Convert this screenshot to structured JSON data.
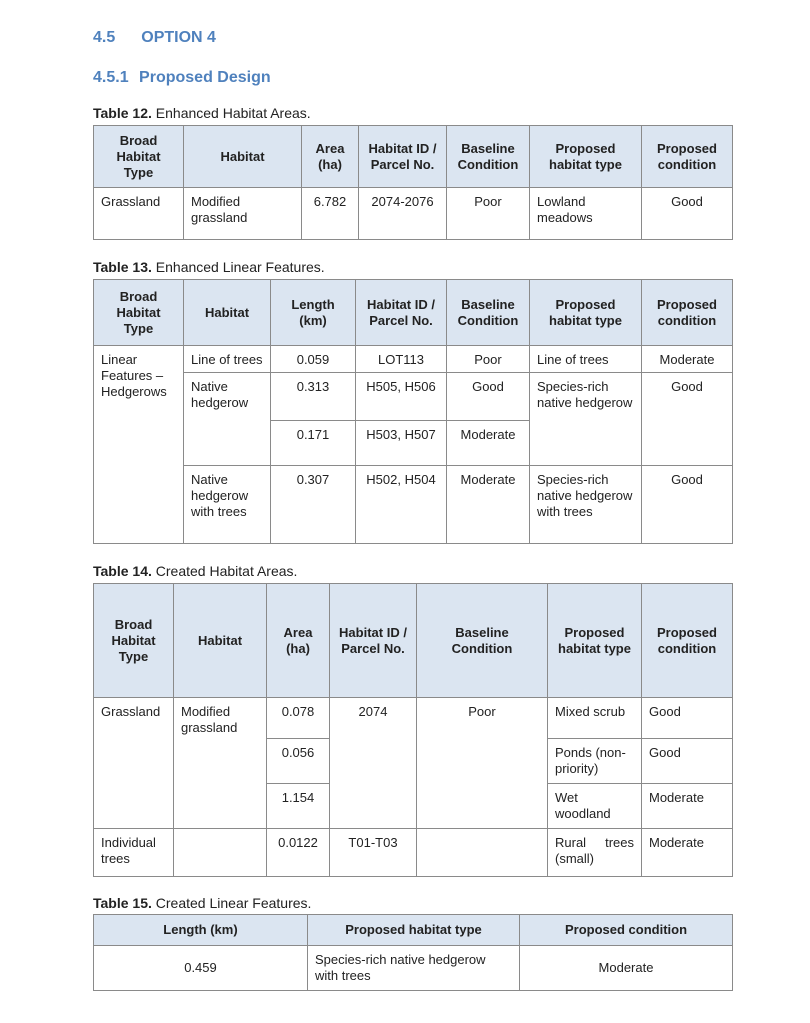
{
  "section": {
    "number": "4.5",
    "title": "OPTION  4"
  },
  "subsection": {
    "number": "4.5.1",
    "title": "Proposed Design"
  },
  "t12": {
    "label": "Table 12.",
    "title": "Enhanced Habitat Areas.",
    "headers": [
      "Broad Habitat Type",
      "Habitat",
      "Area (ha)",
      "Habitat ID / Parcel No.",
      "Baseline Condition",
      "Proposed habitat type",
      "Proposed condition"
    ],
    "row": [
      "Grassland",
      "Modified grassland",
      "6.782",
      "2074-2076",
      "Poor",
      "Lowland meadows",
      "Good"
    ]
  },
  "t13": {
    "label": "Table 13.",
    "title": "Enhanced Linear Features.",
    "headers": [
      "Broad Habitat Type",
      "Habitat",
      "Length (km)",
      "Habitat ID / Parcel No.",
      "Baseline Condition",
      "Proposed habitat type",
      "Proposed condition"
    ],
    "broad": "Linear Features – Hedgerows",
    "r1": [
      "Line of trees",
      "0.059",
      "LOT113",
      "Poor",
      "Line of trees",
      "Moderate"
    ],
    "r2": [
      "Native hedgerow",
      "0.313",
      "H505, H506",
      "Good",
      "Species-rich native hedgerow",
      "Good"
    ],
    "r3": [
      "0.171",
      "H503, H507",
      "Moderate"
    ],
    "r4": [
      "Native hedgerow with trees",
      "0.307",
      "H502, H504",
      "Moderate",
      "Species-rich native hedgerow with trees",
      "Good"
    ]
  },
  "t14": {
    "label": "Table 14.",
    "title": "Created Habitat Areas.",
    "headers": [
      "Broad Habitat Type",
      "Habitat",
      "Area (ha)",
      "Habitat ID / Parcel No.",
      "Baseline Condition",
      "Proposed habitat type",
      "Proposed condition"
    ],
    "broad1": "Grassland",
    "habitat1": "Modified grassland",
    "id1": "2074",
    "base1": "Poor",
    "r1": [
      "0.078",
      "Mixed scrub",
      "Good"
    ],
    "r2": [
      "0.056",
      "Ponds (non-priority)",
      "Good"
    ],
    "r3": [
      "1.154",
      "Wet woodland",
      "Moderate"
    ],
    "r4": [
      "Individual trees",
      "",
      "0.0122",
      "T01-T03",
      "",
      "Rural trees (small)",
      "Moderate"
    ]
  },
  "t15": {
    "label": "Table 15.",
    "title": "Created Linear Features.",
    "headers": [
      "Length (km)",
      "Proposed habitat type",
      "Proposed condition"
    ],
    "row": [
      "0.459",
      "Species-rich native hedgerow with trees",
      "Moderate"
    ]
  }
}
